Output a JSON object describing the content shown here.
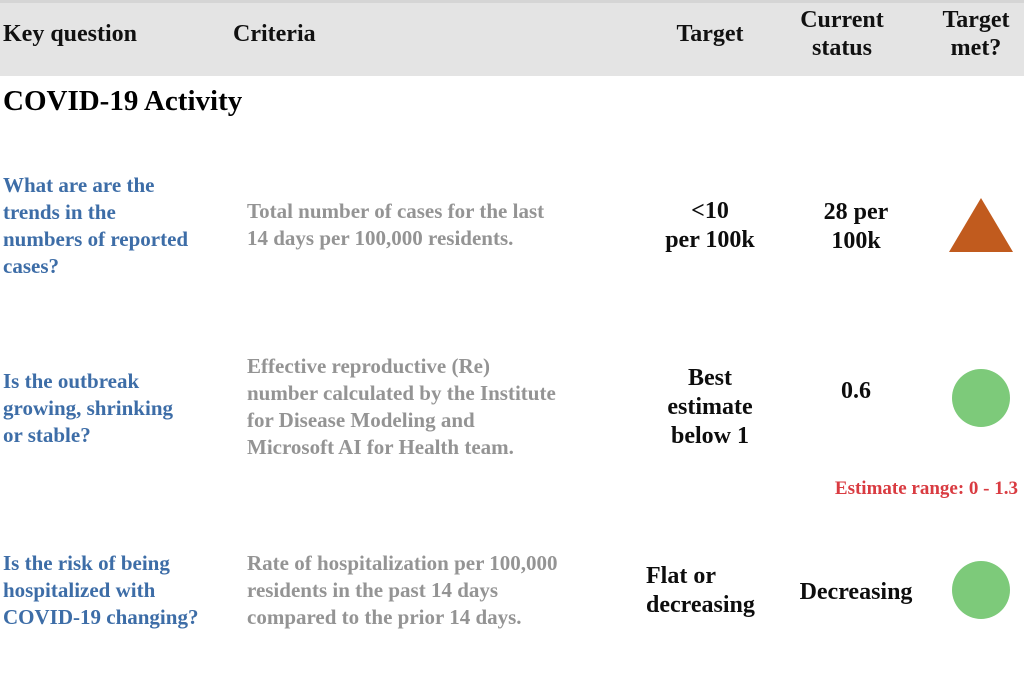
{
  "header": {
    "columns": [
      "Key question",
      "Criteria",
      "Target",
      "Current status",
      "Target met?"
    ]
  },
  "section_title": "COVID-19 Activity",
  "rows": [
    {
      "key_question": [
        "What are are the",
        "trends in the",
        "numbers of reported",
        "cases?"
      ],
      "criteria": [
        "Total number of cases for the last",
        "14 days per 100,000 residents."
      ],
      "target": [
        "<10",
        "per 100k"
      ],
      "current_status": [
        "28 per",
        "100k"
      ],
      "target_met_indicator": "orange-up-triangle",
      "target_met": "no"
    },
    {
      "key_question": [
        "Is the outbreak",
        "growing, shrinking",
        "or stable?"
      ],
      "criteria": [
        "Effective reproductive (Re)",
        "number calculated by the Institute",
        "for Disease Modeling and",
        "Microsoft AI for Health team."
      ],
      "target": [
        "Best",
        "estimate",
        "below 1"
      ],
      "current_status": [
        "0.6"
      ],
      "target_met_indicator": "green-circle",
      "target_met": "yes",
      "note": "Estimate range: 0 - 1.3"
    },
    {
      "key_question": [
        "Is the risk of being",
        "hospitalized with",
        "COVID-19 changing?"
      ],
      "criteria": [
        "Rate of hospitalization per 100,000",
        "residents in the past 14 days",
        "compared to the prior 14 days."
      ],
      "target": [
        "Flat or",
        "decreasing"
      ],
      "current_status": [
        "Decreasing"
      ],
      "target_met_indicator": "green-circle",
      "target_met": "yes"
    }
  ],
  "colors": {
    "header_bg": "#e4e4e4",
    "key_question_blue": "#3d6da7",
    "criteria_gray": "#949494",
    "triangle_orange": "#c15b1e",
    "circle_green": "#7dca7a",
    "note_red": "#d93b41"
  }
}
